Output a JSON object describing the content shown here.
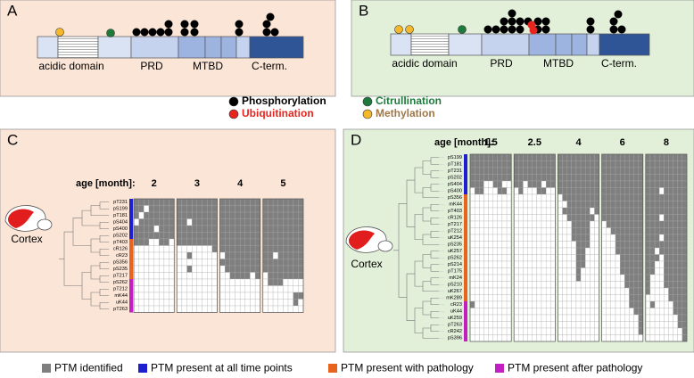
{
  "panel_labels": [
    "A",
    "B",
    "C",
    "D"
  ],
  "domains": {
    "labels": [
      "acidic domain",
      "PRD",
      "MTBD",
      "C-term."
    ]
  },
  "ptm_legend": [
    {
      "label": "Phosphorylation",
      "color": "#000000",
      "text_color": "#000000"
    },
    {
      "label": "Citrullination",
      "color": "#1e7a3a",
      "text_color": "#1e7a3a"
    },
    {
      "label": "Ubiquitination",
      "color": "#e8241e",
      "text_color": "#e8241e"
    },
    {
      "label": "Methylation",
      "color": "#f5b82a",
      "text_color": "#a07848"
    }
  ],
  "heatmaps": [
    {
      "region": "Cortex",
      "age_label": "age [month]:",
      "ages": [
        "2",
        "3",
        "4",
        "5"
      ],
      "cols_per_age": 8,
      "cell_color": "#7f7f7f",
      "sections": [
        {
          "color": "#1f1fd0",
          "rows": [
            {
              "label": "pT231",
              "cells": "11111111111111111111111111111111"
            },
            {
              "label": "pS199",
              "cells": "11011111111111111111111111111111"
            },
            {
              "label": "pT181",
              "cells": "10111111111111111111111111111111"
            },
            {
              "label": "pS404",
              "cells": "01111111110111111111111111111111"
            },
            {
              "label": "pS400",
              "cells": "11110111111111111111111111111111"
            },
            {
              "label": "pS202",
              "cells": "11111111111111111111111111111111"
            }
          ]
        },
        {
          "color": "#e8641e",
          "rows": [
            {
              "label": "pT403",
              "cells": "11100110111111111111111111111111"
            },
            {
              "label": "cR126",
              "cells": "00000000000000011111111111111111"
            },
            {
              "label": "cR23",
              "cells": "00000000001000000111111111011111"
            },
            {
              "label": "pS356",
              "cells": "00000000000000001111111111111111"
            },
            {
              "label": "pS235",
              "cells": "00000000001000000111111111111111"
            },
            {
              "label": "pT217",
              "cells": "00000000000000000011110101111111"
            }
          ]
        },
        {
          "color": "#c21fc2",
          "rows": [
            {
              "label": "pS262",
              "cells": "00000000000000000000000001110000"
            },
            {
              "label": "pT212",
              "cells": "00000000000000000000000000000000"
            },
            {
              "label": "mK44",
              "cells": "00000000000000000000000000000011"
            },
            {
              "label": "uK44",
              "cells": "00000000000000000000000000000010"
            },
            {
              "label": "pT263",
              "cells": "00000000000000000000000000000000"
            }
          ]
        }
      ]
    },
    {
      "region": "Cortex",
      "age_label": "age [month]:",
      "ages": [
        "1.5",
        "2.5",
        "4",
        "6",
        "8"
      ],
      "cols_per_age": 9,
      "cell_color": "#7f7f7f",
      "sections": [
        {
          "color": "#1f1fd0",
          "rows": [
            {
              "label": "pS199",
              "cells": "111111111111111111111111111111111111111111111"
            },
            {
              "label": "pT181",
              "cells": "111111111111111111111111111111111111111111111"
            },
            {
              "label": "pT231",
              "cells": "111111111111111111111111111111111111111111111"
            },
            {
              "label": "pS202",
              "cells": "111111111111111111111111111111111111111111111"
            },
            {
              "label": "pS404",
              "cells": "111001100110111011111111111111111111111111111"
            },
            {
              "label": "pS400",
              "cells": "011000110010001100111111111111111111111011111"
            }
          ]
        },
        {
          "color": "#e8641e",
          "rows": [
            {
              "label": "pS356",
              "cells": "000000000000000000011111111111111111111111111"
            },
            {
              "label": "mK44",
              "cells": "000000000000000000001111111111111111111111111"
            },
            {
              "label": "pT403",
              "cells": "000000000000000000011111101111111111111111111"
            },
            {
              "label": "cR126",
              "cells": "000000000000000000001111110111111111111011111"
            },
            {
              "label": "pT217",
              "cells": "000000000000000000000111100011111111111111111"
            },
            {
              "label": "pT212",
              "cells": "000000000000000000000111100001111111111111111"
            },
            {
              "label": "uK254",
              "cells": "000000000000000000000111100000111111111011111"
            },
            {
              "label": "pS235",
              "cells": "000000000000000000000011100000111111111111111"
            },
            {
              "label": "uK257",
              "cells": "000000000000000000000011000000111111110111111"
            },
            {
              "label": "pS262",
              "cells": "000000000000000000000011000000011111111011111"
            },
            {
              "label": "pS214",
              "cells": "000000000000000000000011000000011111110011111"
            },
            {
              "label": "pT175",
              "cells": "000000000000000000000010000000011111110011111"
            },
            {
              "label": "mK24",
              "cells": "000000000000000000000010000000001111100011111"
            },
            {
              "label": "pS210",
              "cells": "000000000000000000000000000000001111100011111"
            },
            {
              "label": "uK267",
              "cells": "000000000000000000000000000000000111100001111"
            },
            {
              "label": "mK289",
              "cells": "000000000000000000000000000000000111000001111"
            }
          ]
        },
        {
          "color": "#c21fc2",
          "rows": [
            {
              "label": "cR23",
              "cells": "100000000000000000000000000000000111010000111"
            },
            {
              "label": "uK44",
              "cells": "000000000000000000000000000000000011000000111"
            },
            {
              "label": "uK259",
              "cells": "000000000000000000000000000000000001000000011"
            },
            {
              "label": "pT263",
              "cells": "000000000000000000000000000000000001000000011"
            },
            {
              "label": "cR242",
              "cells": "000000000000000000000000000000000001000000001"
            },
            {
              "label": "pS396",
              "cells": "000000000000000000000000000000000000000000001"
            }
          ]
        }
      ]
    }
  ],
  "bottom_legend": [
    {
      "label": "PTM identified",
      "color": "#7f7f7f"
    },
    {
      "label": "PTM present at all time points",
      "color": "#1f1fd0"
    },
    {
      "label": "PTM present with pathology",
      "color": "#e8641e"
    },
    {
      "label": "PTM present after pathology",
      "color": "#c21fc2"
    }
  ]
}
